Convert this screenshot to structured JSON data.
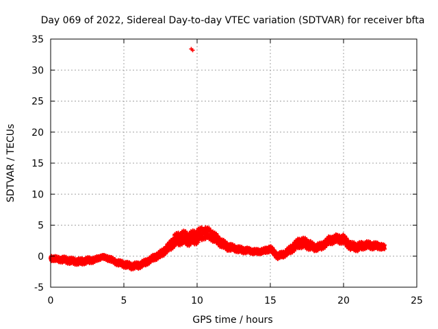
{
  "chart_data": {
    "type": "scatter",
    "title": "Day 069 of 2022, Sidereal Day-to-day VTEC variation (SDTVAR) for receiver bfta",
    "xlabel": "GPS time / hours",
    "ylabel": "SDTVAR / TECUs",
    "xlim": [
      0,
      25
    ],
    "ylim": [
      -5,
      35
    ],
    "xticks": [
      "0",
      "5",
      "10",
      "15",
      "20",
      "25"
    ],
    "yticks": [
      "-5",
      "0",
      "5",
      "10",
      "15",
      "20",
      "25",
      "30",
      "35"
    ],
    "grid": true,
    "marker": "plus",
    "series": [
      {
        "name": "SDTVAR",
        "color": "#ff0000",
        "trend_x": [
          0,
          0.5,
          1,
          1.5,
          2,
          2.5,
          3,
          3.5,
          4,
          4.5,
          5,
          5.5,
          6,
          6.5,
          7,
          7.5,
          8,
          8.5,
          9,
          9.5,
          10,
          10.5,
          11,
          11.5,
          12,
          12.5,
          13,
          13.5,
          14,
          14.5,
          15,
          15.5,
          16,
          16.5,
          17,
          17.5,
          18,
          18.5,
          19,
          19.5,
          20,
          20.5,
          21,
          21.5,
          22,
          22.5,
          22.8
        ],
        "trend_y": [
          -0.3,
          -0.5,
          -0.6,
          -0.8,
          -0.9,
          -0.7,
          -0.6,
          -0.1,
          -0.4,
          -1.0,
          -1.3,
          -1.6,
          -1.5,
          -1.0,
          -0.3,
          0.3,
          1.3,
          2.6,
          3.0,
          2.8,
          3.2,
          3.8,
          3.4,
          2.4,
          1.6,
          1.3,
          1.0,
          0.9,
          0.7,
          0.8,
          1.2,
          0.0,
          0.4,
          1.3,
          2.2,
          2.0,
          1.4,
          1.6,
          2.5,
          2.8,
          2.7,
          1.6,
          1.5,
          1.8,
          1.7,
          1.6,
          1.4
        ],
        "trend_spread": [
          0.5,
          0.5,
          0.6,
          0.6,
          0.6,
          0.6,
          0.5,
          0.4,
          0.5,
          0.5,
          0.6,
          0.6,
          0.6,
          0.6,
          0.6,
          0.7,
          0.8,
          1.2,
          1.3,
          1.3,
          1.4,
          1.2,
          1.1,
          0.9,
          0.8,
          0.6,
          0.6,
          0.5,
          0.5,
          0.5,
          0.6,
          0.6,
          0.6,
          0.8,
          1.0,
          1.0,
          0.7,
          0.7,
          0.8,
          0.8,
          0.9,
          0.8,
          0.8,
          0.7,
          0.7,
          0.6,
          0.5
        ],
        "outliers": [
          {
            "x": 9.6,
            "y": 33.4
          },
          {
            "x": 9.7,
            "y": 33.2
          }
        ]
      }
    ]
  }
}
